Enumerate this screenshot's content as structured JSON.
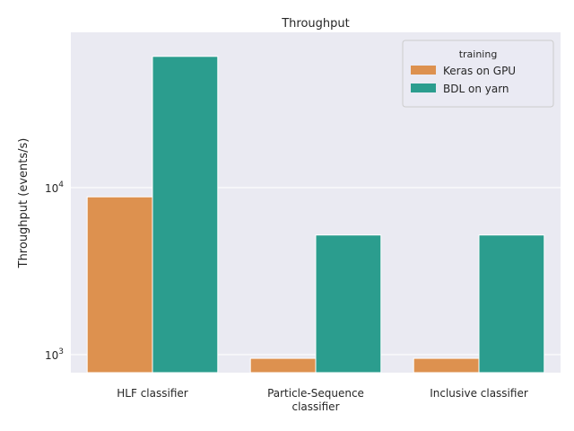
{
  "chart_data": {
    "type": "bar",
    "title": "Throughput",
    "xlabel": "",
    "ylabel": "Throughput (events/s)",
    "yscale": "log",
    "ylim": [
      780,
      85000
    ],
    "yticks": [
      {
        "value": 1000,
        "base": "10",
        "exp": "3"
      },
      {
        "value": 10000,
        "base": "10",
        "exp": "4"
      }
    ],
    "categories": [
      [
        "HLF classifier"
      ],
      [
        "Particle-Sequence",
        "classifier"
      ],
      [
        "Inclusive classifier"
      ]
    ],
    "legend": {
      "title": "training",
      "position": "top-right"
    },
    "series": [
      {
        "name": "Keras on GPU",
        "color": "#dd914f",
        "values": [
          8800,
          950,
          950
        ]
      },
      {
        "name": "BDL on yarn",
        "color": "#2b9d8e",
        "values": [
          61000,
          5200,
          5200
        ]
      }
    ],
    "grid": true,
    "background": "#eaeaf2"
  }
}
